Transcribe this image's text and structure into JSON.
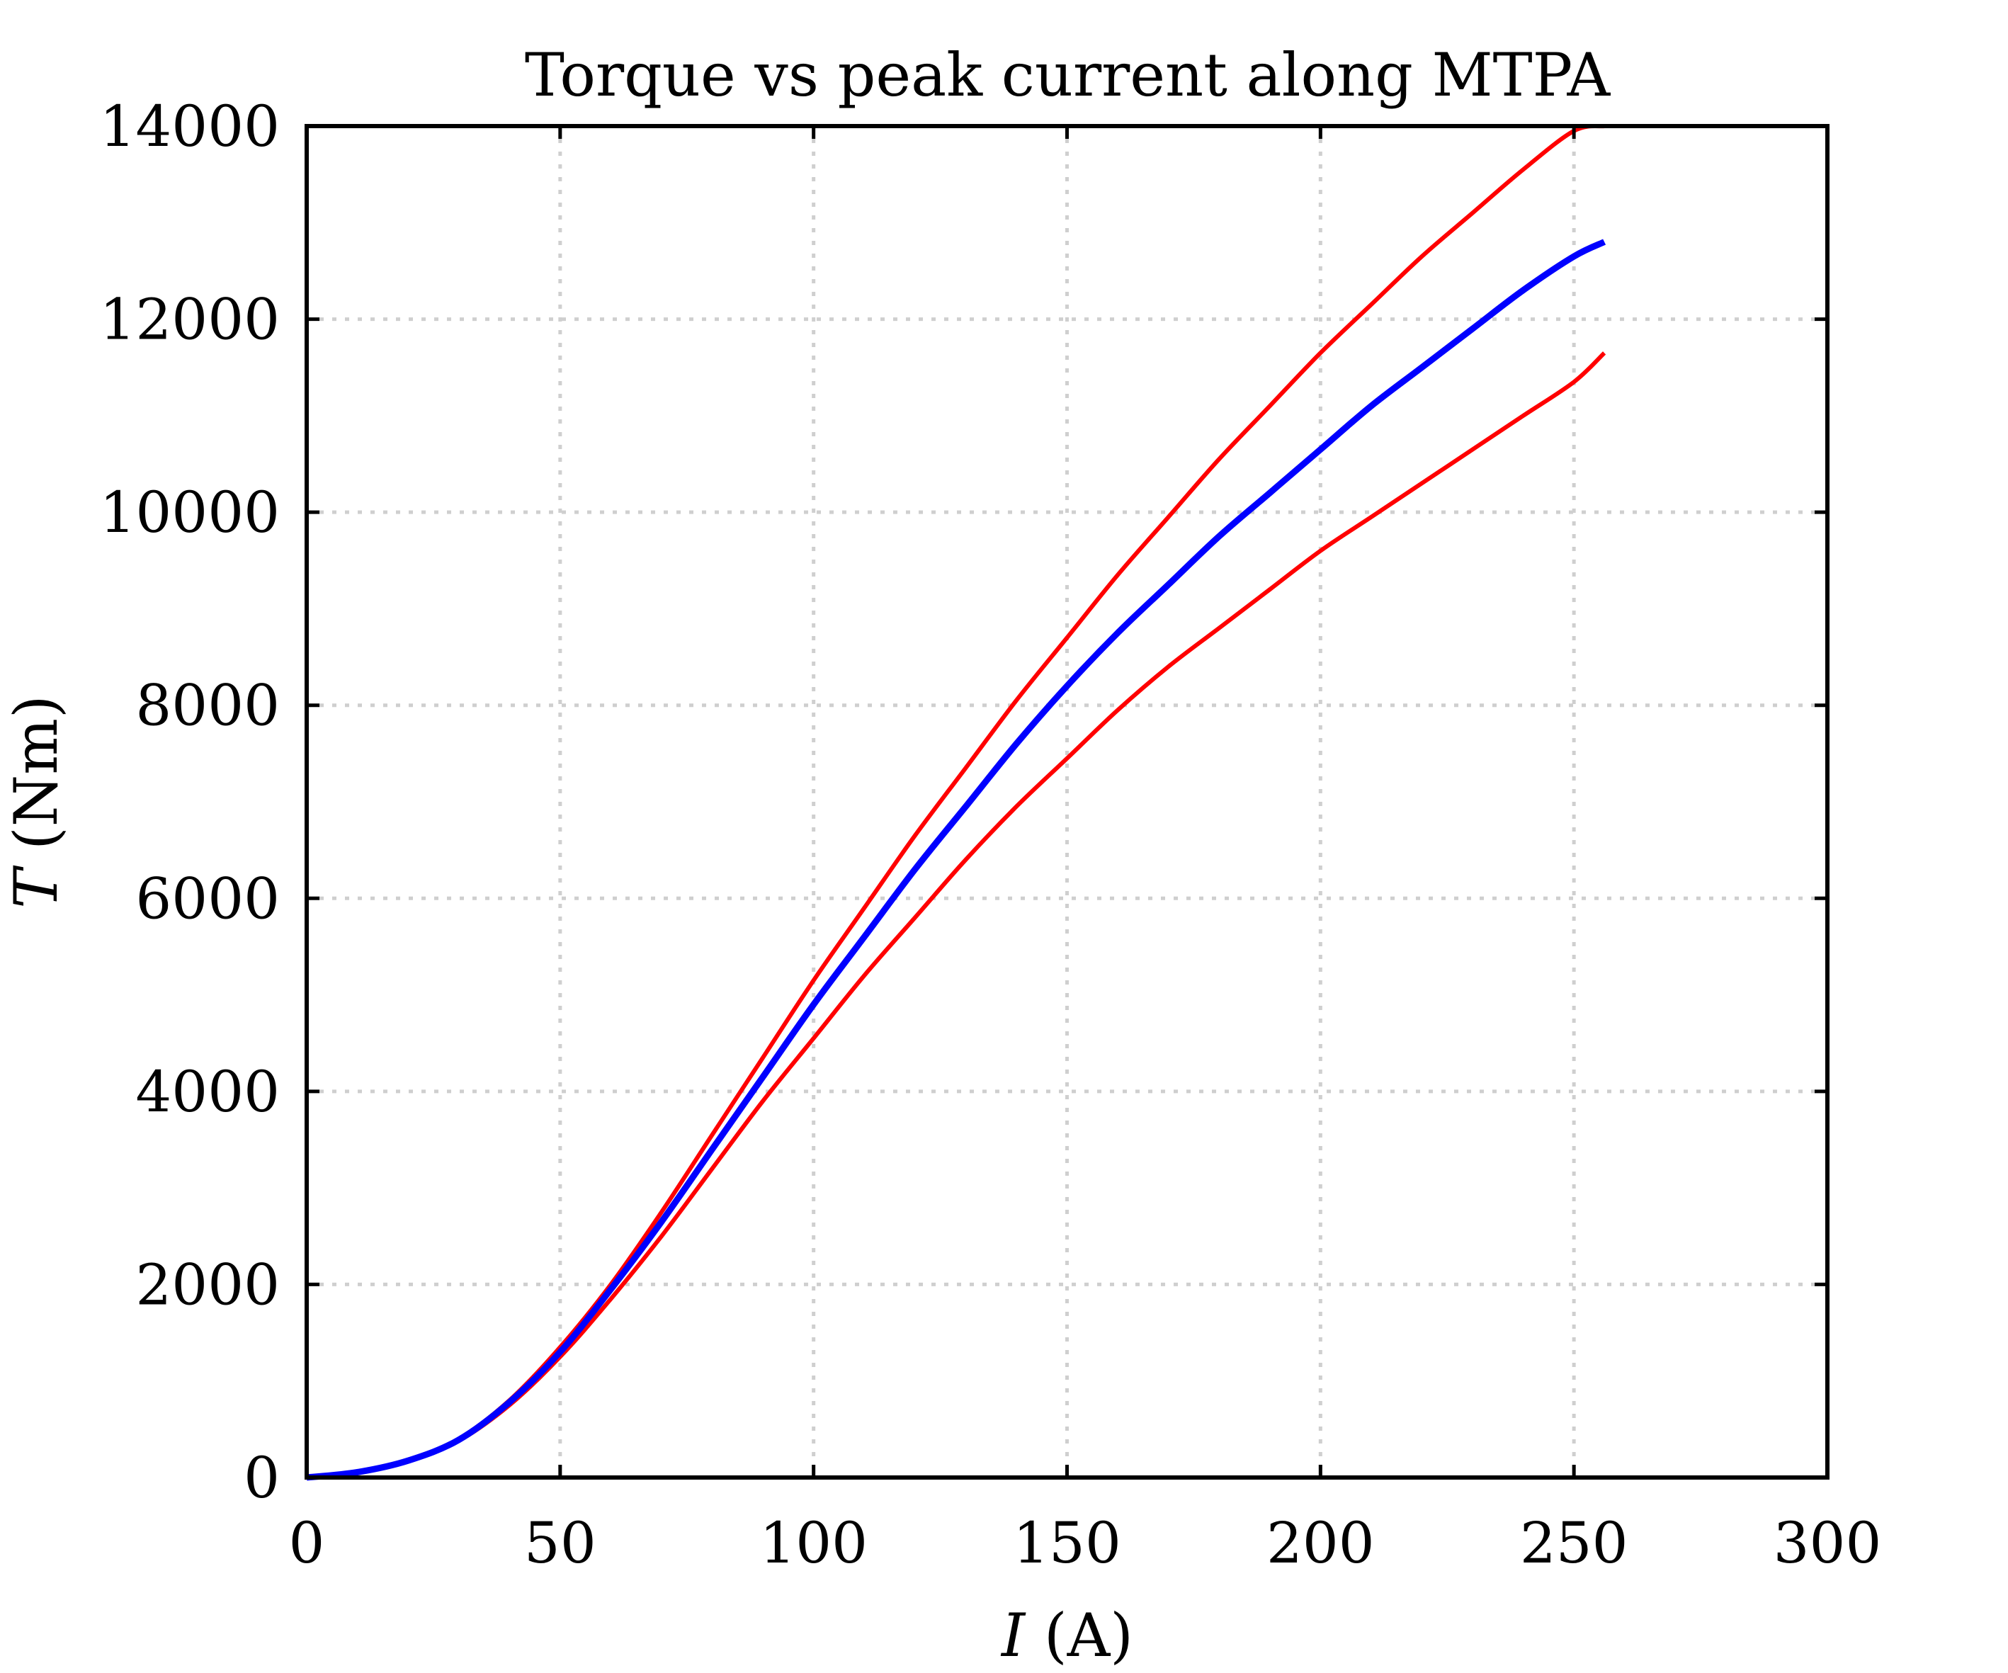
{
  "chart_data": {
    "type": "line",
    "title": "Torque vs peak current along MTPA",
    "xlabel": {
      "var": "I",
      "unit": " (A)"
    },
    "ylabel": {
      "var": "T",
      "unit": " (Nm)"
    },
    "xlim": [
      0,
      300
    ],
    "ylim": [
      0,
      14000
    ],
    "xticks": [
      0,
      50,
      100,
      150,
      200,
      250,
      300
    ],
    "yticks": [
      0,
      2000,
      4000,
      6000,
      8000,
      10000,
      12000,
      14000
    ],
    "grid": true,
    "series": [
      {
        "color": "#ff0000",
        "x": [
          0,
          10,
          20,
          30,
          40,
          50,
          60,
          70,
          80,
          90,
          100,
          110,
          120,
          130,
          140,
          150,
          160,
          170,
          180,
          190,
          200,
          210,
          220,
          230,
          240,
          250,
          256
        ],
        "y": [
          0,
          60,
          180,
          400,
          800,
          1350,
          2000,
          2750,
          3550,
          4350,
          5150,
          5900,
          6650,
          7350,
          8050,
          8700,
          9350,
          9950,
          10550,
          11100,
          11650,
          12150,
          12650,
          13100,
          13550,
          13950,
          14000
        ]
      },
      {
        "color": "#0000ff",
        "x": [
          0,
          10,
          20,
          30,
          40,
          50,
          60,
          70,
          80,
          90,
          100,
          110,
          120,
          130,
          140,
          150,
          160,
          170,
          180,
          190,
          200,
          210,
          220,
          230,
          240,
          250,
          256
        ],
        "y": [
          0,
          55,
          175,
          390,
          780,
          1300,
          1950,
          2650,
          3400,
          4150,
          4900,
          5600,
          6300,
          6950,
          7600,
          8200,
          8750,
          9250,
          9750,
          10200,
          10650,
          11100,
          11500,
          11900,
          12300,
          12650,
          12800
        ]
      },
      {
        "color": "#ff0000",
        "x": [
          0,
          10,
          20,
          30,
          40,
          50,
          60,
          70,
          80,
          90,
          100,
          110,
          120,
          130,
          140,
          150,
          160,
          170,
          180,
          190,
          200,
          210,
          220,
          230,
          240,
          250,
          256
        ],
        "y": [
          0,
          50,
          170,
          380,
          750,
          1250,
          1850,
          2500,
          3200,
          3900,
          4550,
          5200,
          5800,
          6400,
          6950,
          7450,
          7950,
          8400,
          8800,
          9200,
          9600,
          9950,
          10300,
          10650,
          11000,
          11350,
          11650
        ]
      }
    ]
  }
}
